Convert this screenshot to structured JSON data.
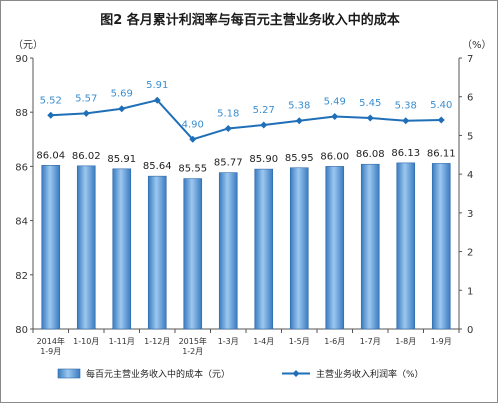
{
  "chart_data": {
    "type": "bar+line",
    "title": "图2  各月累计利润率与每百元主营业务收入中的成本",
    "categories": [
      [
        "2014年",
        "1-9月"
      ],
      [
        "1-10月"
      ],
      [
        "1-11月"
      ],
      [
        "1-12月"
      ],
      [
        "2015年",
        "1-2月"
      ],
      [
        "1-3月"
      ],
      [
        "1-4月"
      ],
      [
        "1-5月"
      ],
      [
        "1-6月"
      ],
      [
        "1-7月"
      ],
      [
        "1-8月"
      ],
      [
        "1-9月"
      ]
    ],
    "series": [
      {
        "name": "每百元主营业务收入中的成本（元）",
        "type": "bar",
        "axis": "left",
        "color": "#5b9bd5",
        "values": [
          86.04,
          86.02,
          85.91,
          85.64,
          85.55,
          85.77,
          85.9,
          85.95,
          86.0,
          86.08,
          86.13,
          86.11
        ],
        "labels": [
          "86.04",
          "86.02",
          "85.91",
          "85.64",
          "85.55",
          "85.77",
          "85.90",
          "85.95",
          "86.00",
          "86.08",
          "86.13",
          "86.11"
        ]
      },
      {
        "name": "主营业务收入利润率（%）",
        "type": "line",
        "axis": "right",
        "color": "#1f6fb8",
        "values": [
          5.52,
          5.57,
          5.69,
          5.91,
          4.9,
          5.18,
          5.27,
          5.38,
          5.49,
          5.45,
          5.38,
          5.4
        ],
        "labels": [
          "5.52",
          "5.57",
          "5.69",
          "5.91",
          "4.90",
          "5.18",
          "5.27",
          "5.38",
          "5.49",
          "5.45",
          "5.38",
          "5.40"
        ]
      }
    ],
    "left_axis": {
      "unit": "（元）",
      "ylim": [
        80,
        90
      ],
      "ticks": [
        "80",
        "82",
        "84",
        "86",
        "88",
        "90"
      ]
    },
    "right_axis": {
      "unit": "（%）",
      "ylim": [
        0,
        7
      ],
      "ticks": [
        "0",
        "1",
        "2",
        "3",
        "4",
        "5",
        "6",
        "7"
      ]
    },
    "grid": false,
    "legend_placement": "bottom"
  }
}
